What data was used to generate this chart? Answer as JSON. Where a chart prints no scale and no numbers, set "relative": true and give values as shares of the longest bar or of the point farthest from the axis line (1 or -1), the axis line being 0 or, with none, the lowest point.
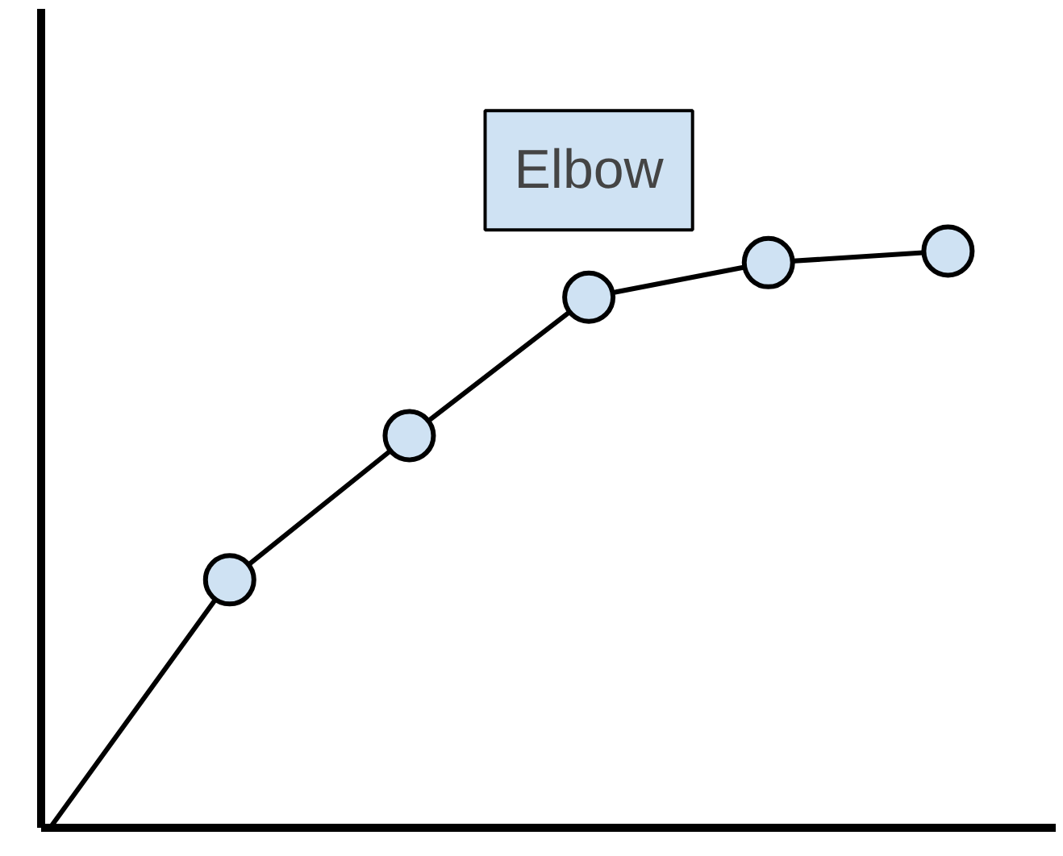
{
  "chart_data": {
    "type": "line",
    "relative": true,
    "categories": [
      null,
      null,
      null,
      null,
      null,
      null
    ],
    "series": [
      {
        "color": "#000000",
        "values": [
          0,
          0.43,
          0.68,
          0.92,
          0.98,
          1.0
        ]
      }
    ],
    "marker": "circle",
    "line_style": "solid",
    "annotations": [
      "Elbow"
    ]
  }
}
